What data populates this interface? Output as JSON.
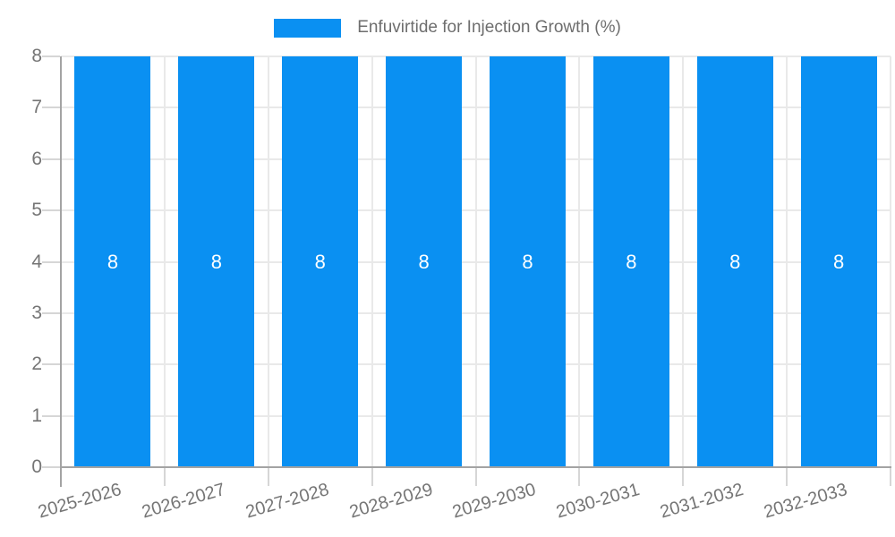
{
  "chart_data": {
    "type": "bar",
    "title": "Enfuvirtide for Injection Growth (%)",
    "categories": [
      "2025-2026",
      "2026-2027",
      "2027-2028",
      "2028-2029",
      "2029-2030",
      "2030-2031",
      "2031-2032",
      "2032-2033"
    ],
    "series": [
      {
        "name": "Enfuvirtide for Injection Growth (%)",
        "values": [
          8,
          8,
          8,
          8,
          8,
          8,
          8,
          8
        ]
      }
    ],
    "bar_value_labels": [
      "8",
      "8",
      "8",
      "8",
      "8",
      "8",
      "8",
      "8"
    ],
    "xlabel": "",
    "ylabel": "",
    "ylim": [
      0,
      8
    ],
    "yticks": [
      0,
      1,
      2,
      3,
      4,
      5,
      6,
      7,
      8
    ],
    "legend_position": "top",
    "grid": true,
    "colors": {
      "bar": "#0A90F2",
      "bar_label": "#FFFFFF",
      "axis_text": "#757575",
      "title_text": "#6E6E6E",
      "gridline": "#E9E9E9",
      "axis_line": "#A3A3A3",
      "tick_mark": "#D6D6D6",
      "background": "#FFFFFF"
    }
  }
}
